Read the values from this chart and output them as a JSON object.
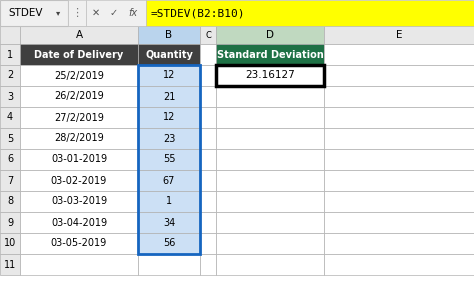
{
  "formula_bar_name": "STDEV",
  "formula_bar_formula": "=STDEV(B2:B10)",
  "stdev_value": "23.16127",
  "data_rows": [
    [
      "25/2/2019",
      "12"
    ],
    [
      "26/2/2019",
      "21"
    ],
    [
      "27/2/2019",
      "12"
    ],
    [
      "28/2/2019",
      "23"
    ],
    [
      "03-01-2019",
      "55"
    ],
    [
      "03-02-2019",
      "67"
    ],
    [
      "03-03-2019",
      "1"
    ],
    [
      "03-04-2019",
      "34"
    ],
    [
      "03-05-2019",
      "56"
    ]
  ],
  "header_bg": "#3f3f3f",
  "header_text": "#ffffff",
  "green_bg": "#1e7145",
  "green_text": "#ffffff",
  "formula_yellow_bg": "#FFFF00",
  "formula_text": "#000000",
  "selected_col_bg": "#cce0f5",
  "grid_color": "#b0b0b0",
  "row_num_bg": "#e8e8e8",
  "col_hdr_bg": "#e8e8e8",
  "col_hdr_B_bg": "#bad4ed",
  "col_hdr_D_bg": "#c0d9c0",
  "cell_border_selected": "#1565C0",
  "result_cell_border": "#000000",
  "white": "#ffffff",
  "arrow_color": "#cc0000",
  "fb_bg": "#f0f0f0",
  "fb_border": "#c0c0c0"
}
